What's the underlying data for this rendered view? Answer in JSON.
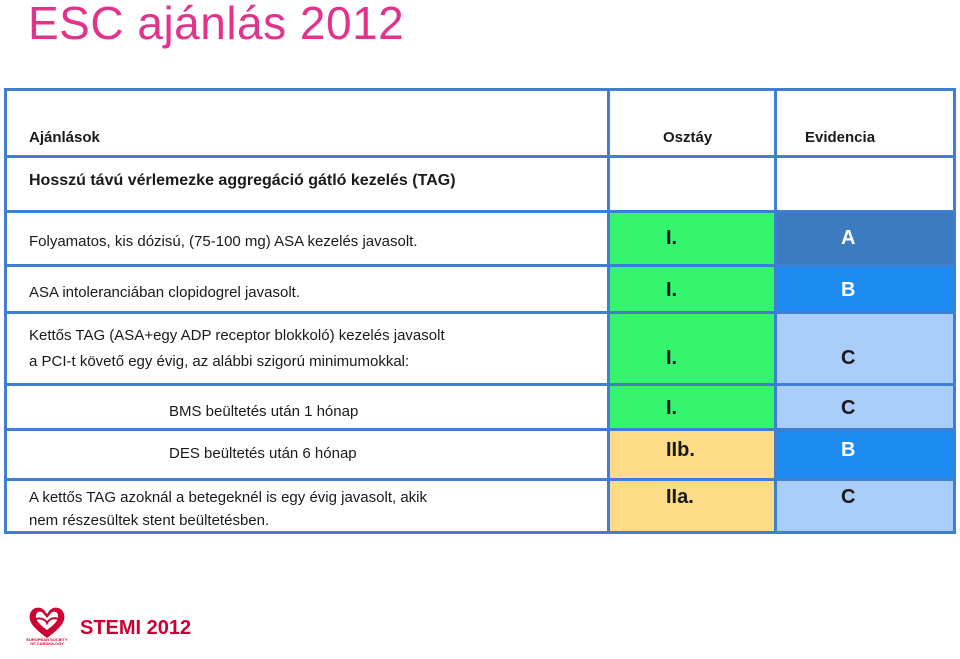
{
  "title": "ESC ajánlás 2012",
  "table": {
    "headers": {
      "recommendations": "Ajánlások",
      "class": "Osztáy",
      "evidence": "Evidencia"
    },
    "section_heading": "Hosszú távú vérlemezke aggregáció gátló kezelés (TAG)",
    "rows": [
      {
        "text": [
          "Folyamatos, kis dózisú, (75-100 mg) ASA kezelés javasolt."
        ],
        "class": "I.",
        "evidence": "A"
      },
      {
        "text": [
          "ASA intoleranciában clopidogrel javasolt."
        ],
        "class": "I.",
        "evidence": "B"
      },
      {
        "text": [
          "Kettős TAG (ASA+egy ADP receptor blokkoló) kezelés javasolt",
          "a PCI-t követő egy évig, az alábbi szigorú minimumokkal:"
        ],
        "class": "I.",
        "evidence": "C"
      },
      {
        "text": [
          "BMS beültetés után 1 hónap"
        ],
        "class": "I.",
        "evidence": "C"
      },
      {
        "text": [
          "DES beültetés után 6 hónap"
        ],
        "class": "IIb.",
        "evidence": "B"
      },
      {
        "text": [
          "A kettős TAG azoknál a betegeknél is egy évig javasolt, akik",
          "nem részesültek stent beültetésben."
        ],
        "class": "IIa.",
        "evidence": "C"
      }
    ]
  },
  "footer": {
    "logo_text": "EUROPEAN SOCIETY OF CARDIOLOGY",
    "label": "STEMI 2012"
  },
  "colors": {
    "title": "#e0338c",
    "border": "#3f7fd3",
    "class_green": "#35f56f",
    "class_yellow": "#fedc87",
    "evidence_dark_blue": "#3c7bc0",
    "evidence_blue": "#1e8bf3",
    "evidence_light_blue": "#a8cdf8",
    "footer_red": "#cc0033"
  }
}
